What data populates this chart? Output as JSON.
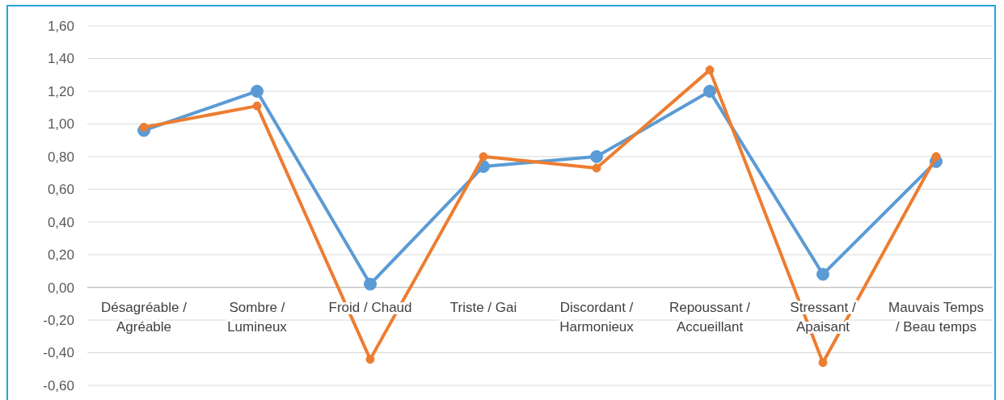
{
  "chart_data": {
    "type": "line",
    "categories": [
      "Désagréable / Agréable",
      "Sombre / Lumineux",
      "Froid / Chaud",
      "Triste / Gai",
      "Discordant / Harmonieux",
      "Repoussant / Accueillant",
      "Stressant / Apaisant",
      "Mauvais Temps / Beau temps"
    ],
    "series": [
      {
        "color": "#5b9bd5",
        "values": [
          0.96,
          1.2,
          0.02,
          0.74,
          0.8,
          1.2,
          0.08,
          0.77
        ]
      },
      {
        "color": "#ed7d31",
        "values": [
          0.98,
          1.11,
          -0.44,
          0.8,
          0.73,
          1.33,
          -0.46,
          0.8
        ]
      }
    ],
    "ylim": [
      -0.6,
      1.6
    ],
    "yticks": [
      {
        "value": -0.6,
        "label": "-0,60"
      },
      {
        "value": -0.4,
        "label": "-0,40"
      },
      {
        "value": -0.2,
        "label": "-0,20"
      },
      {
        "value": 0,
        "label": "0,00"
      },
      {
        "value": 0.2,
        "label": "0,20"
      },
      {
        "value": 0.4,
        "label": "0,40"
      },
      {
        "value": 0.6,
        "label": "0,60"
      },
      {
        "value": 0.8,
        "label": "0,80"
      },
      {
        "value": 1,
        "label": "1,00"
      },
      {
        "value": 1.2,
        "label": "1,20"
      },
      {
        "value": 1.4,
        "label": "1,40"
      },
      {
        "value": 1.6,
        "label": "1,60"
      }
    ],
    "grid": "y",
    "marker": "circle",
    "line_style": "solid"
  }
}
